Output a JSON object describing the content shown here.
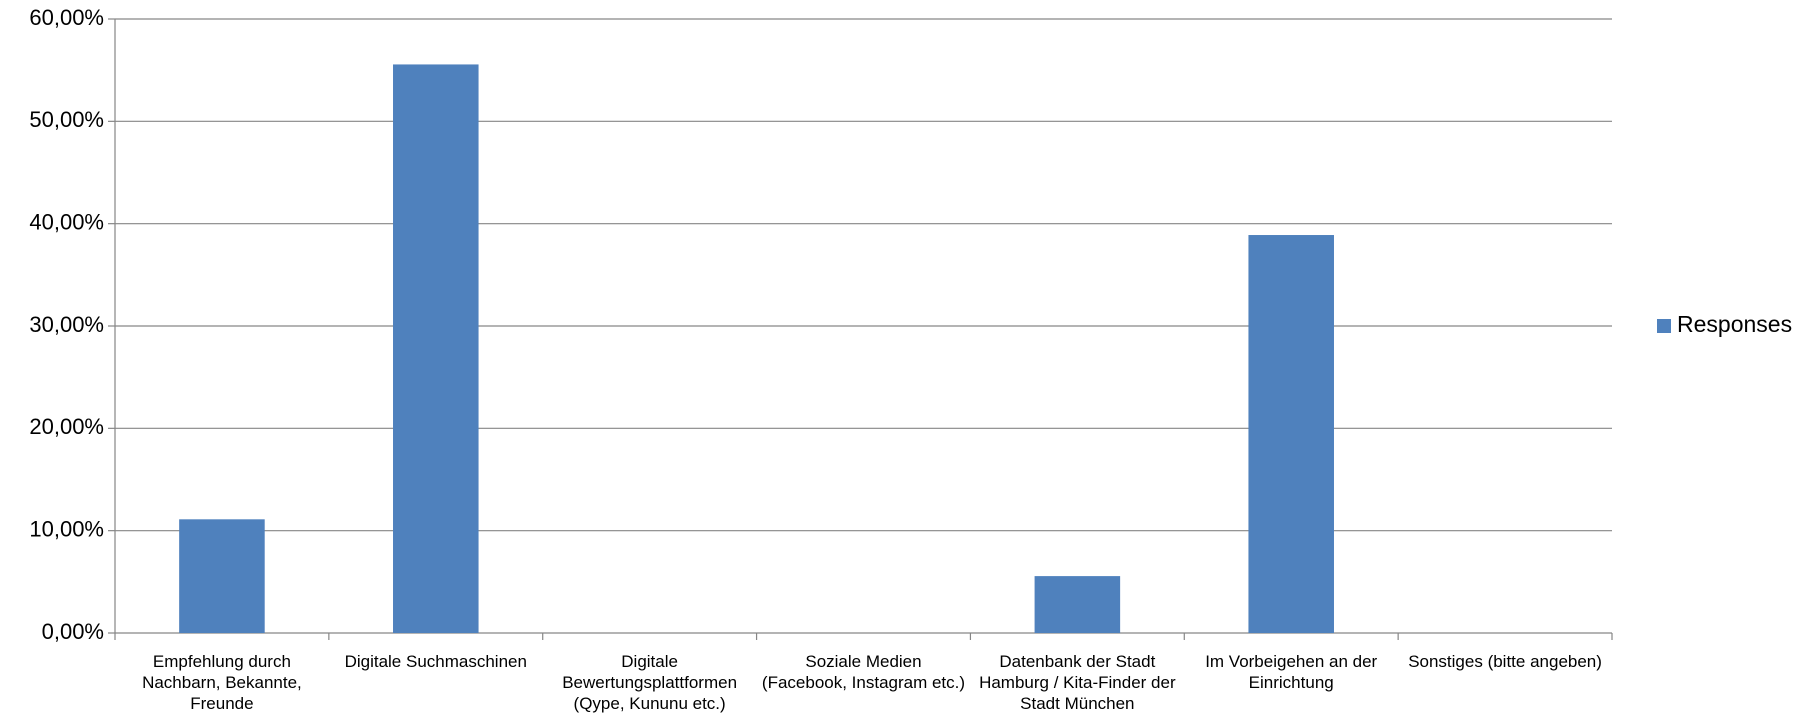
{
  "chart_data": {
    "type": "bar",
    "categories": [
      "Empfehlung durch Nachbarn, Bekannte, Freunde",
      "Digitale Suchmaschinen",
      "Digitale Bewertungsplattformen (Qype, Kununu etc.)",
      "Soziale Medien (Facebook, Instagram etc.)",
      "Datenbank der Stadt Hamburg / Kita-Finder der Stadt München",
      "Im Vorbeigehen an der Einrichtung",
      "Sonstiges (bitte angeben)"
    ],
    "series": [
      {
        "name": "Responses",
        "color": "#4f81bd",
        "values": [
          11.11,
          55.56,
          0,
          0,
          5.56,
          38.89,
          0
        ]
      }
    ],
    "ylim": [
      0,
      60
    ],
    "yticks": [
      {
        "value": 0,
        "label": "0,00%"
      },
      {
        "value": 10,
        "label": "10,00%"
      },
      {
        "value": 20,
        "label": "20,00%"
      },
      {
        "value": 30,
        "label": "30,00%"
      },
      {
        "value": 40,
        "label": "40,00%"
      },
      {
        "value": 50,
        "label": "50,00%"
      },
      {
        "value": 60,
        "label": "60,00%"
      }
    ],
    "grid": true,
    "legend": "right"
  }
}
